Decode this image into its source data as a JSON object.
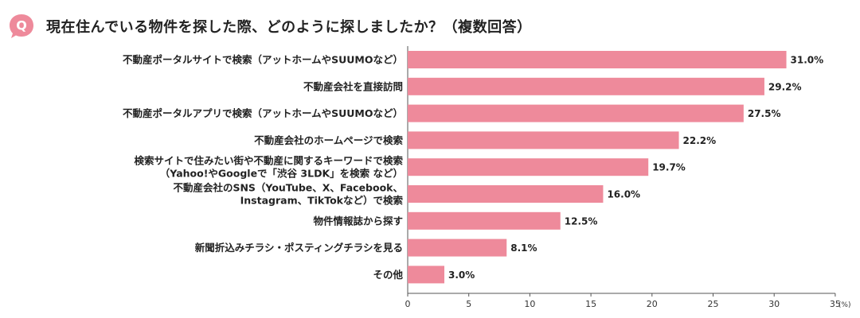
{
  "header": {
    "badge_letter": "Q",
    "question": "現在住んでいる物件を探した際、どのように探しましたか？（複数回答）"
  },
  "colors": {
    "bar": "#ee8a9b",
    "badge": "#ee8a9b",
    "axis": "#555555"
  },
  "chart_data": {
    "type": "bar",
    "orientation": "horizontal",
    "title": "現在住んでいる物件を探した際、どのように探しましたか？（複数回答）",
    "categories": [
      [
        "不動産ポータルサイトで検索（アットホームやSUUMOなど）"
      ],
      [
        "不動産会社を直接訪問"
      ],
      [
        "不動産ポータルアプリで検索（アットホームやSUUMOなど）"
      ],
      [
        "不動産会社のホームページで検索"
      ],
      [
        "検索サイトで住みたい街や不動産に関するキーワードで検索",
        "（Yahoo!やGoogleで「渋谷 3LDK」を検索 など）"
      ],
      [
        "不動産会社のSNS（YouTube、X、Facebook、",
        "Instagram、TikTokなど）で検索"
      ],
      [
        "物件情報誌から探す"
      ],
      [
        "新聞折込みチラシ・ポスティングチラシを見る"
      ],
      [
        "その他"
      ]
    ],
    "values": [
      31.0,
      29.2,
      27.5,
      22.2,
      19.7,
      16.0,
      12.5,
      8.1,
      3.0
    ],
    "value_labels": [
      "31.0%",
      "29.2%",
      "27.5%",
      "22.2%",
      "19.7%",
      "16.0%",
      "12.5%",
      "8.1%",
      "3.0%"
    ],
    "xlim": [
      0,
      35
    ],
    "xticks": [
      "0",
      "5",
      "10",
      "15",
      "20",
      "25",
      "30",
      "35"
    ],
    "xtick_values": [
      0,
      5,
      10,
      15,
      20,
      25,
      30,
      35
    ],
    "unit": "(%)",
    "grid": false
  }
}
